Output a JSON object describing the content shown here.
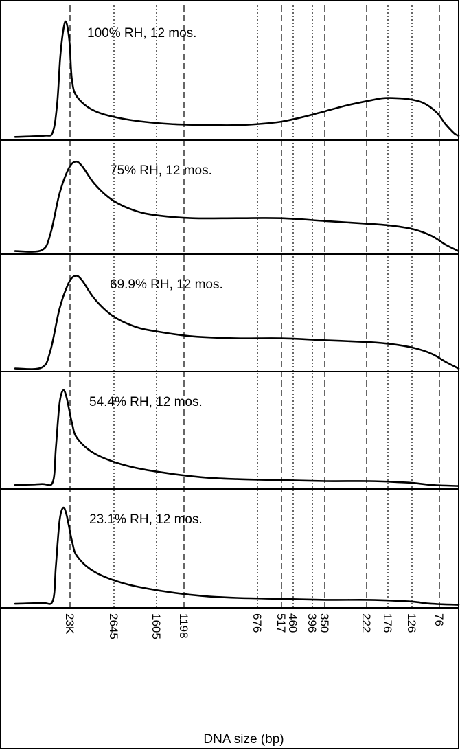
{
  "chart_data": {
    "type": "line",
    "xlabel": "DNA size (bp)",
    "ylabel": "",
    "grid": true,
    "x_markers": [
      {
        "label": "23K",
        "style": "dashed"
      },
      {
        "label": "2645",
        "style": "dotted"
      },
      {
        "label": "1605",
        "style": "dotted"
      },
      {
        "label": "1198",
        "style": "dashed"
      },
      {
        "label": "676",
        "style": "dotted"
      },
      {
        "label": "517",
        "style": "dashed"
      },
      {
        "label": "460",
        "style": "dotted"
      },
      {
        "label": "396",
        "style": "dotted"
      },
      {
        "label": "350",
        "style": "dashed"
      },
      {
        "label": "222",
        "style": "dashed"
      },
      {
        "label": "176",
        "style": "dotted"
      },
      {
        "label": "126",
        "style": "dotted"
      },
      {
        "label": "76",
        "style": "dashed"
      }
    ],
    "series": [
      {
        "name": "100% RH, 12 mos.",
        "points": [
          [
            0,
            0.01
          ],
          [
            0.065,
            0.02
          ],
          [
            0.085,
            0.05
          ],
          [
            0.095,
            0.3
          ],
          [
            0.102,
            0.7
          ],
          [
            0.11,
            0.95
          ],
          [
            0.116,
            0.98
          ],
          [
            0.123,
            0.8
          ],
          [
            0.128,
            0.5
          ],
          [
            0.14,
            0.35
          ],
          [
            0.18,
            0.23
          ],
          [
            0.25,
            0.16
          ],
          [
            0.35,
            0.12
          ],
          [
            0.45,
            0.11
          ],
          [
            0.5,
            0.11
          ],
          [
            0.55,
            0.12
          ],
          [
            0.6,
            0.14
          ],
          [
            0.65,
            0.18
          ],
          [
            0.7,
            0.23
          ],
          [
            0.75,
            0.28
          ],
          [
            0.8,
            0.32
          ],
          [
            0.83,
            0.34
          ],
          [
            0.86,
            0.34
          ],
          [
            0.89,
            0.33
          ],
          [
            0.92,
            0.3
          ],
          [
            0.95,
            0.22
          ],
          [
            0.97,
            0.12
          ],
          [
            0.99,
            0.04
          ],
          [
            1.0,
            0.02
          ]
        ]
      },
      {
        "name": "75% RH, 12 mos.",
        "points": [
          [
            0,
            0.01
          ],
          [
            0.06,
            0.02
          ],
          [
            0.08,
            0.2
          ],
          [
            0.1,
            0.62
          ],
          [
            0.12,
            0.88
          ],
          [
            0.135,
            0.96
          ],
          [
            0.15,
            0.92
          ],
          [
            0.18,
            0.72
          ],
          [
            0.22,
            0.55
          ],
          [
            0.27,
            0.44
          ],
          [
            0.32,
            0.39
          ],
          [
            0.4,
            0.36
          ],
          [
            0.5,
            0.36
          ],
          [
            0.6,
            0.36
          ],
          [
            0.7,
            0.33
          ],
          [
            0.8,
            0.3
          ],
          [
            0.85,
            0.28
          ],
          [
            0.9,
            0.24
          ],
          [
            0.94,
            0.17
          ],
          [
            0.97,
            0.08
          ],
          [
            1.0,
            0.01
          ]
        ]
      },
      {
        "name": "69.9% RH, 12 mos.",
        "points": [
          [
            0,
            0.01
          ],
          [
            0.06,
            0.02
          ],
          [
            0.08,
            0.2
          ],
          [
            0.1,
            0.62
          ],
          [
            0.12,
            0.88
          ],
          [
            0.135,
            0.96
          ],
          [
            0.15,
            0.92
          ],
          [
            0.18,
            0.72
          ],
          [
            0.22,
            0.55
          ],
          [
            0.27,
            0.44
          ],
          [
            0.32,
            0.39
          ],
          [
            0.4,
            0.34
          ],
          [
            0.5,
            0.32
          ],
          [
            0.6,
            0.32
          ],
          [
            0.7,
            0.3
          ],
          [
            0.8,
            0.28
          ],
          [
            0.85,
            0.26
          ],
          [
            0.9,
            0.22
          ],
          [
            0.94,
            0.16
          ],
          [
            0.97,
            0.08
          ],
          [
            1.0,
            0.01
          ]
        ]
      },
      {
        "name": "54.4% RH, 12 mos.",
        "points": [
          [
            0,
            0.02
          ],
          [
            0.06,
            0.03
          ],
          [
            0.085,
            0.05
          ],
          [
            0.092,
            0.4
          ],
          [
            0.1,
            0.85
          ],
          [
            0.108,
            0.99
          ],
          [
            0.116,
            0.92
          ],
          [
            0.128,
            0.66
          ],
          [
            0.14,
            0.5
          ],
          [
            0.18,
            0.34
          ],
          [
            0.25,
            0.22
          ],
          [
            0.33,
            0.15
          ],
          [
            0.42,
            0.1
          ],
          [
            0.5,
            0.08
          ],
          [
            0.6,
            0.07
          ],
          [
            0.7,
            0.06
          ],
          [
            0.8,
            0.06
          ],
          [
            0.86,
            0.05
          ],
          [
            0.9,
            0.04
          ],
          [
            0.94,
            0.02
          ],
          [
            1.0,
            0.01
          ]
        ]
      },
      {
        "name": "23.1% RH, 12 mos.",
        "points": [
          [
            0,
            0.02
          ],
          [
            0.06,
            0.03
          ],
          [
            0.085,
            0.05
          ],
          [
            0.092,
            0.4
          ],
          [
            0.1,
            0.85
          ],
          [
            0.108,
            0.99
          ],
          [
            0.116,
            0.92
          ],
          [
            0.128,
            0.66
          ],
          [
            0.14,
            0.5
          ],
          [
            0.18,
            0.34
          ],
          [
            0.25,
            0.22
          ],
          [
            0.33,
            0.15
          ],
          [
            0.42,
            0.1
          ],
          [
            0.5,
            0.08
          ],
          [
            0.6,
            0.07
          ],
          [
            0.7,
            0.06
          ],
          [
            0.8,
            0.06
          ],
          [
            0.86,
            0.05
          ],
          [
            0.9,
            0.04
          ],
          [
            0.94,
            0.02
          ],
          [
            1.0,
            0.01
          ]
        ]
      }
    ]
  }
}
